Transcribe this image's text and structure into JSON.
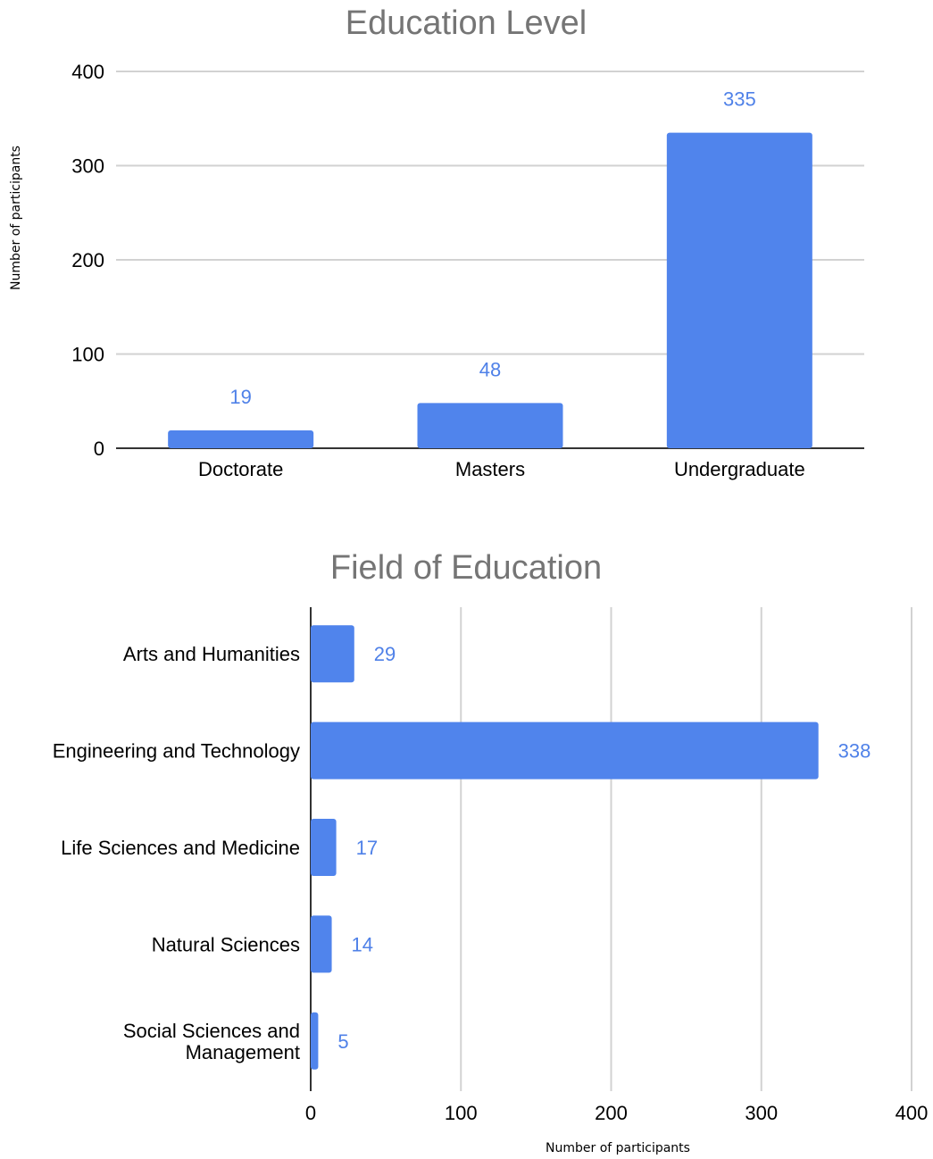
{
  "chart_data": [
    {
      "type": "bar",
      "orientation": "vertical",
      "title": "Education Level",
      "xlabel": "",
      "ylabel": "Number of participants",
      "categories": [
        "Doctorate",
        "Masters",
        "Undergraduate"
      ],
      "values": [
        19,
        48,
        335
      ],
      "ylim": [
        0,
        400
      ],
      "ticks": [
        "0",
        "100",
        "200",
        "300",
        "400"
      ],
      "tick_values": [
        0,
        100,
        200,
        300,
        400
      ],
      "grid": true,
      "legend": "none",
      "bar_color": "#5084ec",
      "label_color": "#4f81e8"
    },
    {
      "type": "bar",
      "orientation": "horizontal",
      "title": "Field of Education",
      "xlabel": "Number of participants",
      "ylabel": "",
      "categories": [
        "Arts and Humanities",
        "Engineering and Technology",
        "Life Sciences and Medicine",
        "Natural Sciences",
        "Social Sciences and Management"
      ],
      "values": [
        29,
        338,
        17,
        14,
        5
      ],
      "xlim": [
        0,
        400
      ],
      "ticks": [
        "0",
        "100",
        "200",
        "300",
        "400"
      ],
      "tick_values": [
        0,
        100,
        200,
        300,
        400
      ],
      "grid": true,
      "legend": "none",
      "bar_color": "#5084ec",
      "label_color": "#4f81e8"
    }
  ]
}
